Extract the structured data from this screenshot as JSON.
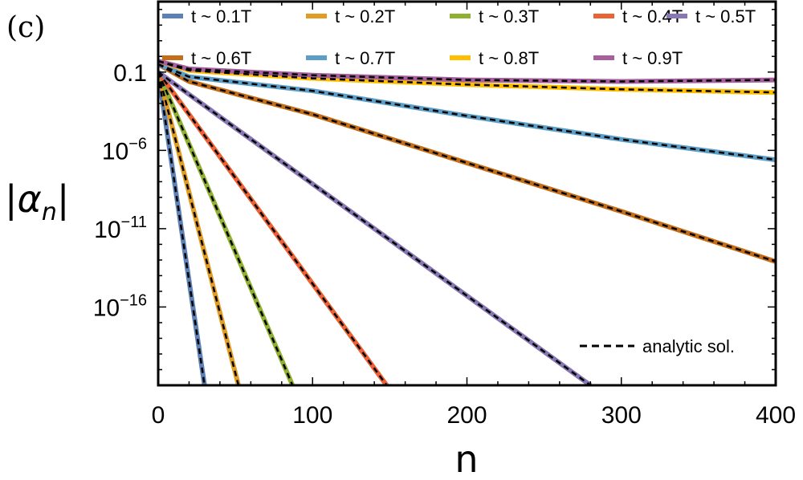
{
  "chart_data": {
    "type": "line",
    "panel_label": "(c)",
    "xlabel": "n",
    "ylabel": "|α_n|",
    "ylabel_base": "|α",
    "ylabel_sub": "n",
    "ylabel_close": "|",
    "xlim": [
      0,
      400
    ],
    "ylim_log10": [
      -21,
      3.5
    ],
    "y_scale": "log",
    "grid": false,
    "legend_position": "top, inside plot",
    "x_ticks": [
      "0",
      "100",
      "200",
      "300",
      "400"
    ],
    "y_ticks": [
      {
        "log10": -1,
        "label": "0.1"
      },
      {
        "log10": -6,
        "label": "10",
        "exp": "−6"
      },
      {
        "log10": -11,
        "label": "10",
        "exp": "−11"
      },
      {
        "log10": -16,
        "label": "10",
        "exp": "−16"
      }
    ],
    "series": [
      {
        "name": "t ~ 0.1T",
        "color": "#5E81B5",
        "x": [
          0,
          30
        ],
        "log10_y": [
          -1,
          -21
        ]
      },
      {
        "name": "t ~ 0.2T",
        "color": "#E19C24",
        "x": [
          0,
          52
        ],
        "log10_y": [
          -1,
          -21
        ]
      },
      {
        "name": "t ~ 0.3T",
        "color": "#8FB032",
        "x": [
          0,
          87
        ],
        "log10_y": [
          -1,
          -21
        ]
      },
      {
        "name": "t ~ 0.4T",
        "color": "#EB6235",
        "x": [
          0,
          148
        ],
        "log10_y": [
          -1,
          -21
        ]
      },
      {
        "name": "t ~ 0.5T",
        "color": "#8778B3",
        "x": [
          0,
          280
        ],
        "log10_y": [
          -1,
          -21
        ]
      },
      {
        "name": "t ~ 0.6T",
        "color": "#C56E1A",
        "x": [
          0,
          20,
          100,
          200,
          300,
          400
        ],
        "log10_y": [
          -0.5,
          -1.6,
          -3.7,
          -6.8,
          -9.9,
          -13.1
        ]
      },
      {
        "name": "t ~ 0.7T",
        "color": "#5D9EC7",
        "x": [
          0,
          20,
          100,
          200,
          300,
          400
        ],
        "log10_y": [
          -0.5,
          -1.3,
          -2.2,
          -3.8,
          -5.3,
          -6.6
        ]
      },
      {
        "name": "t ~ 0.8T",
        "color": "#FFBF00",
        "x": [
          0,
          20,
          100,
          200,
          300,
          400
        ],
        "log10_y": [
          -0.3,
          -0.9,
          -1.4,
          -1.8,
          -2.1,
          -2.3
        ]
      },
      {
        "name": "t ~ 0.9T",
        "color": "#A5609D",
        "x": [
          0,
          20,
          100,
          200,
          300,
          400
        ],
        "log10_y": [
          -0.3,
          -0.8,
          -1.2,
          -1.5,
          -1.6,
          -1.5
        ]
      }
    ],
    "analytic": {
      "name": "analytic sol.",
      "color": "#000000"
    }
  }
}
